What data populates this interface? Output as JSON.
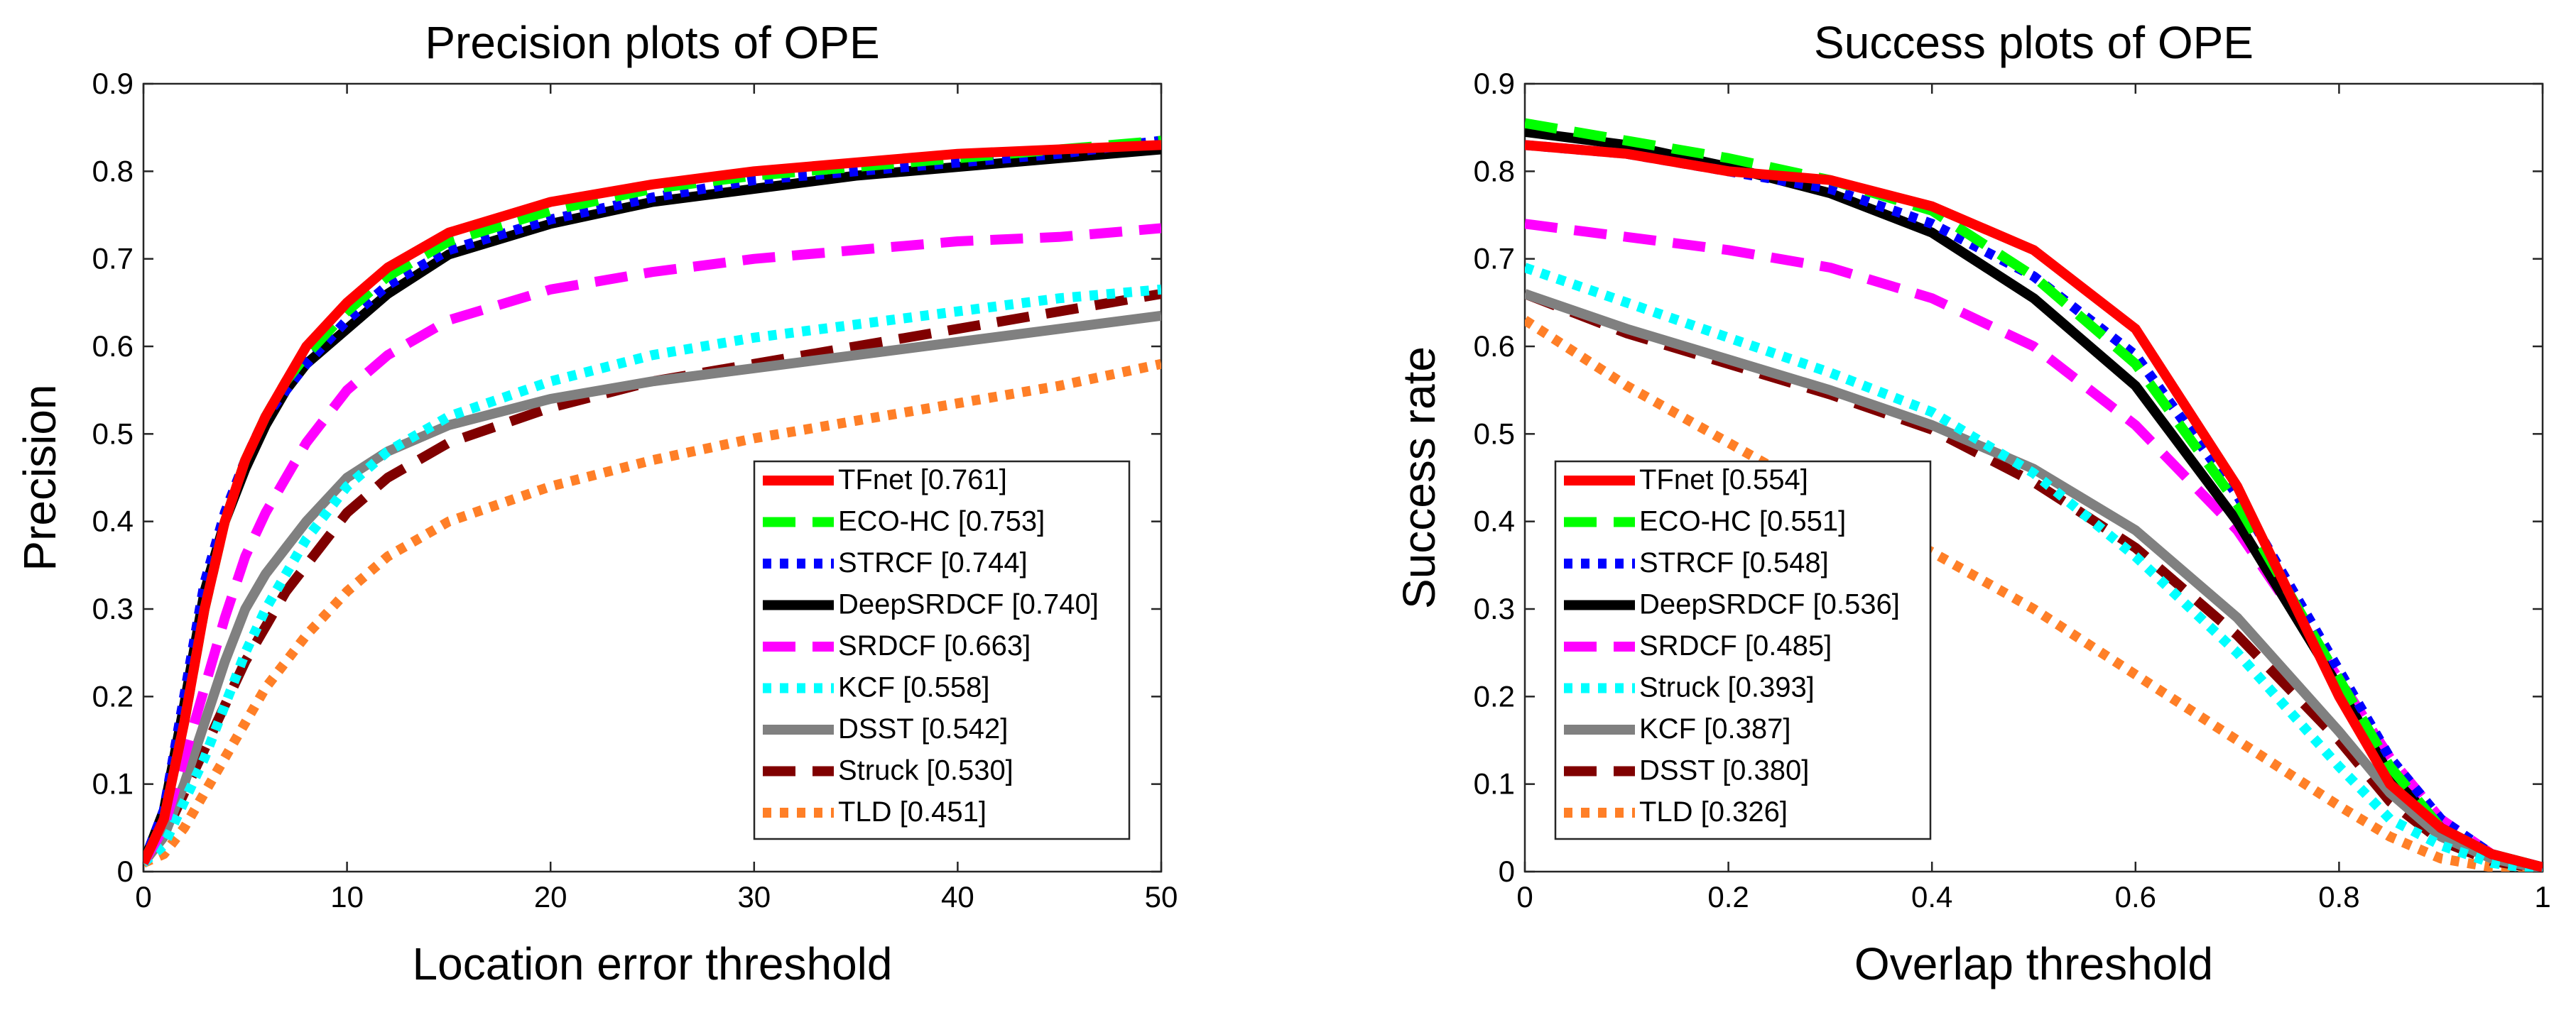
{
  "chart_data": [
    {
      "type": "line",
      "title": "Precision plots of OPE",
      "xlabel": "Location error threshold",
      "ylabel": "Precision",
      "xlim": [
        0,
        50
      ],
      "ylim": [
        0,
        0.9
      ],
      "xticks": [
        "0",
        "10",
        "20",
        "30",
        "40",
        "50"
      ],
      "yticks": [
        "0",
        "0.1",
        "0.2",
        "0.3",
        "0.4",
        "0.5",
        "0.6",
        "0.7",
        "0.8",
        "0.9"
      ],
      "legend_position": "bottom-right",
      "grid": false,
      "x": [
        0,
        1,
        2,
        3,
        4,
        5,
        6,
        7,
        8,
        10,
        12,
        15,
        20,
        25,
        30,
        35,
        40,
        45,
        50
      ],
      "series": [
        {
          "name": "TFnet [0.761]",
          "color": "#ff0000",
          "style": "solid",
          "values": [
            0.01,
            0.06,
            0.17,
            0.3,
            0.4,
            0.47,
            0.52,
            0.56,
            0.6,
            0.65,
            0.69,
            0.73,
            0.765,
            0.785,
            0.8,
            0.81,
            0.82,
            0.825,
            0.83
          ]
        },
        {
          "name": "ECO-HC [0.753]",
          "color": "#00ff00",
          "style": "dashed",
          "values": [
            0.01,
            0.06,
            0.17,
            0.3,
            0.4,
            0.47,
            0.52,
            0.56,
            0.59,
            0.64,
            0.68,
            0.72,
            0.755,
            0.78,
            0.795,
            0.805,
            0.815,
            0.825,
            0.835
          ]
        },
        {
          "name": "STRCF [0.744]",
          "color": "#0000ff",
          "style": "dotted",
          "values": [
            0.01,
            0.07,
            0.2,
            0.33,
            0.41,
            0.47,
            0.52,
            0.55,
            0.58,
            0.63,
            0.67,
            0.71,
            0.745,
            0.77,
            0.79,
            0.8,
            0.81,
            0.82,
            0.835
          ]
        },
        {
          "name": "DeepSRDCF [0.740]",
          "color": "#000000",
          "style": "solid",
          "values": [
            0.01,
            0.07,
            0.19,
            0.32,
            0.4,
            0.46,
            0.51,
            0.55,
            0.58,
            0.62,
            0.66,
            0.705,
            0.74,
            0.765,
            0.78,
            0.795,
            0.805,
            0.815,
            0.825
          ]
        },
        {
          "name": "SRDCF [0.663]",
          "color": "#ff00ff",
          "style": "dashed",
          "values": [
            0.01,
            0.05,
            0.13,
            0.21,
            0.29,
            0.36,
            0.41,
            0.45,
            0.49,
            0.55,
            0.59,
            0.63,
            0.665,
            0.685,
            0.7,
            0.71,
            0.72,
            0.725,
            0.735
          ]
        },
        {
          "name": "KCF [0.558]",
          "color": "#00ffff",
          "style": "dotted",
          "values": [
            0.01,
            0.03,
            0.08,
            0.13,
            0.19,
            0.25,
            0.3,
            0.34,
            0.38,
            0.44,
            0.48,
            0.52,
            0.56,
            0.59,
            0.61,
            0.625,
            0.64,
            0.655,
            0.665
          ]
        },
        {
          "name": "DSST [0.542]",
          "color": "#808080",
          "style": "solid",
          "values": [
            0.01,
            0.04,
            0.1,
            0.17,
            0.24,
            0.3,
            0.34,
            0.37,
            0.4,
            0.45,
            0.48,
            0.51,
            0.54,
            0.56,
            0.575,
            0.59,
            0.605,
            0.62,
            0.635
          ]
        },
        {
          "name": "Struck [0.530]",
          "color": "#800000",
          "style": "dashed",
          "values": [
            0.01,
            0.04,
            0.09,
            0.14,
            0.19,
            0.24,
            0.28,
            0.32,
            0.35,
            0.41,
            0.45,
            0.49,
            0.53,
            0.56,
            0.58,
            0.6,
            0.62,
            0.64,
            0.66
          ]
        },
        {
          "name": "TLD [0.451]",
          "color": "#ff7f27",
          "style": "dotted",
          "values": [
            0.01,
            0.02,
            0.05,
            0.09,
            0.13,
            0.17,
            0.21,
            0.24,
            0.27,
            0.32,
            0.36,
            0.4,
            0.44,
            0.47,
            0.495,
            0.515,
            0.535,
            0.555,
            0.58
          ]
        }
      ]
    },
    {
      "type": "line",
      "title": "Success plots of OPE",
      "xlabel": "Overlap threshold",
      "ylabel": "Success rate",
      "xlim": [
        0,
        1
      ],
      "ylim": [
        0,
        0.9
      ],
      "xticks": [
        "0",
        "0.2",
        "0.4",
        "0.6",
        "0.8",
        "1"
      ],
      "yticks": [
        "0",
        "0.1",
        "0.2",
        "0.3",
        "0.4",
        "0.5",
        "0.6",
        "0.7",
        "0.8",
        "0.9"
      ],
      "legend_position": "bottom-left",
      "grid": false,
      "x": [
        0,
        0.1,
        0.2,
        0.3,
        0.4,
        0.5,
        0.6,
        0.7,
        0.8,
        0.85,
        0.9,
        0.95,
        1.0
      ],
      "series": [
        {
          "name": "TFnet [0.554]",
          "color": "#ff0000",
          "style": "solid",
          "values": [
            0.83,
            0.82,
            0.8,
            0.79,
            0.76,
            0.71,
            0.62,
            0.44,
            0.2,
            0.1,
            0.05,
            0.02,
            0.005
          ]
        },
        {
          "name": "ECO-HC [0.551]",
          "color": "#00ff00",
          "style": "dashed",
          "values": [
            0.855,
            0.835,
            0.815,
            0.79,
            0.755,
            0.68,
            0.58,
            0.42,
            0.22,
            0.12,
            0.05,
            0.02,
            0.005
          ]
        },
        {
          "name": "STRCF [0.548]",
          "color": "#0000ff",
          "style": "dotted",
          "values": [
            0.83,
            0.82,
            0.8,
            0.78,
            0.74,
            0.68,
            0.59,
            0.43,
            0.23,
            0.13,
            0.06,
            0.02,
            0.005
          ]
        },
        {
          "name": "DeepSRDCF [0.536]",
          "color": "#000000",
          "style": "solid",
          "values": [
            0.845,
            0.83,
            0.805,
            0.775,
            0.73,
            0.655,
            0.555,
            0.4,
            0.21,
            0.11,
            0.05,
            0.02,
            0.005
          ]
        },
        {
          "name": "SRDCF [0.485]",
          "color": "#ff00ff",
          "style": "dashed",
          "values": [
            0.74,
            0.725,
            0.71,
            0.69,
            0.655,
            0.6,
            0.51,
            0.39,
            0.22,
            0.13,
            0.06,
            0.02,
            0.005
          ]
        },
        {
          "name": "Struck [0.393]",
          "color": "#00ffff",
          "style": "dotted",
          "values": [
            0.69,
            0.65,
            0.61,
            0.57,
            0.525,
            0.455,
            0.36,
            0.25,
            0.12,
            0.06,
            0.03,
            0.01,
            0.002
          ]
        },
        {
          "name": "KCF [0.387]",
          "color": "#808080",
          "style": "solid",
          "values": [
            0.66,
            0.62,
            0.585,
            0.55,
            0.51,
            0.46,
            0.39,
            0.29,
            0.16,
            0.09,
            0.04,
            0.015,
            0.003
          ]
        },
        {
          "name": "DSST [0.380]",
          "color": "#800000",
          "style": "dashed",
          "values": [
            0.66,
            0.615,
            0.58,
            0.545,
            0.505,
            0.445,
            0.37,
            0.27,
            0.15,
            0.08,
            0.035,
            0.012,
            0.003
          ]
        },
        {
          "name": "TLD [0.326]",
          "color": "#ff7f27",
          "style": "dotted",
          "values": [
            0.63,
            0.555,
            0.49,
            0.425,
            0.365,
            0.3,
            0.225,
            0.15,
            0.075,
            0.04,
            0.015,
            0.005,
            0.001
          ]
        }
      ]
    }
  ]
}
